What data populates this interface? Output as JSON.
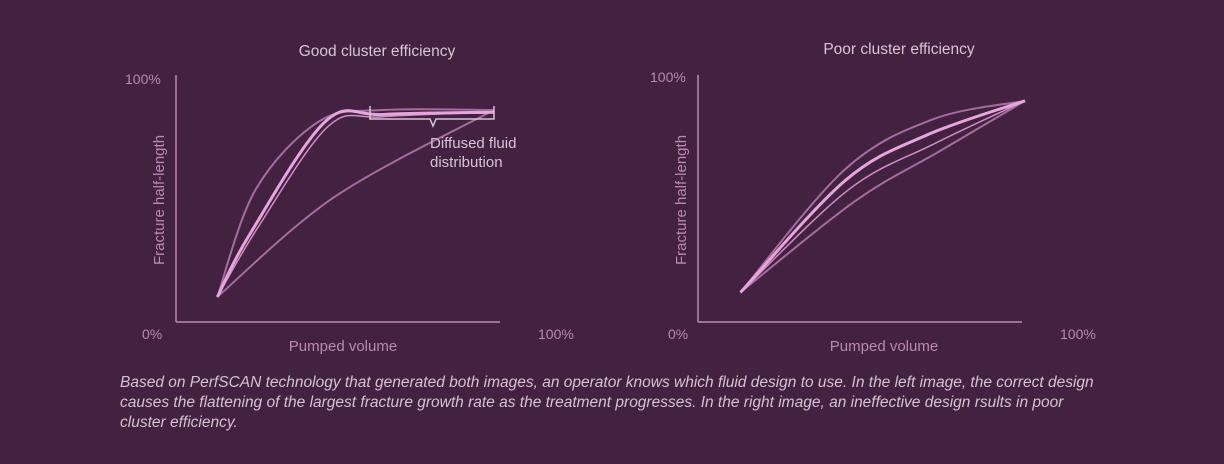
{
  "colors": {
    "background": "#432140",
    "axis": "#b98ab4",
    "curve": "#b076ab",
    "highlight": "#e6a5dd",
    "text": "#d6c6d4"
  },
  "caption": "Based on PerfSCAN technology that generated both images, an operator knows which fluid design to use. In the left image, the correct design causes the flattening of the largest fracture growth rate as the treatment progresses. In the right image, an ineffective design rsults in poor cluster efficiency.",
  "chart_data": [
    {
      "type": "line",
      "title": "Good cluster efficiency",
      "xlabel": "Pumped volume",
      "ylabel": "Fracture half-length",
      "x_ticks": [
        "0%",
        "100%"
      ],
      "y_ticks": [
        "100%"
      ],
      "xlim": [
        0,
        100
      ],
      "ylim": [
        0,
        100
      ],
      "grid": false,
      "annotation": {
        "text": [
          "Diffused fluid",
          "distribution"
        ]
      },
      "series": [
        {
          "role": "upper-envelope",
          "points": [
            [
              13,
              11
            ],
            [
              25,
              58
            ],
            [
              45,
              88
            ],
            [
              65,
              93
            ],
            [
              100,
              93
            ]
          ]
        },
        {
          "role": "median",
          "points": [
            [
              13,
              11
            ],
            [
              23,
              38
            ],
            [
              47,
              88
            ],
            [
              65,
              91
            ],
            [
              100,
              92
            ]
          ]
        },
        {
          "role": "inner",
          "points": [
            [
              13,
              11
            ],
            [
              26,
              42
            ],
            [
              48,
              86
            ],
            [
              65,
              90
            ],
            [
              100,
              92
            ]
          ]
        },
        {
          "role": "lower-envelope",
          "points": [
            [
              13,
              11
            ],
            [
              50,
              55
            ],
            [
              100,
              93
            ]
          ]
        }
      ]
    },
    {
      "type": "line",
      "title": "Poor cluster efficiency",
      "xlabel": "Pumped volume",
      "ylabel": "Fracture half-length",
      "x_ticks": [
        "0%",
        "100%"
      ],
      "y_ticks": [
        "100%"
      ],
      "xlim": [
        0,
        100
      ],
      "ylim": [
        0,
        100
      ],
      "grid": false,
      "series": [
        {
          "role": "upper-envelope",
          "points": [
            [
              13,
              13
            ],
            [
              45,
              67
            ],
            [
              72,
              89
            ],
            [
              100,
              97
            ]
          ]
        },
        {
          "role": "median",
          "points": [
            [
              13,
              13
            ],
            [
              45,
              62
            ],
            [
              70,
              82
            ],
            [
              100,
              97
            ]
          ]
        },
        {
          "role": "inner",
          "points": [
            [
              13,
              13
            ],
            [
              46,
              58
            ],
            [
              72,
              78
            ],
            [
              100,
              97
            ]
          ]
        },
        {
          "role": "lower-envelope",
          "points": [
            [
              13,
              13
            ],
            [
              48,
              53
            ],
            [
              74,
              75
            ],
            [
              100,
              97
            ]
          ]
        }
      ]
    }
  ]
}
